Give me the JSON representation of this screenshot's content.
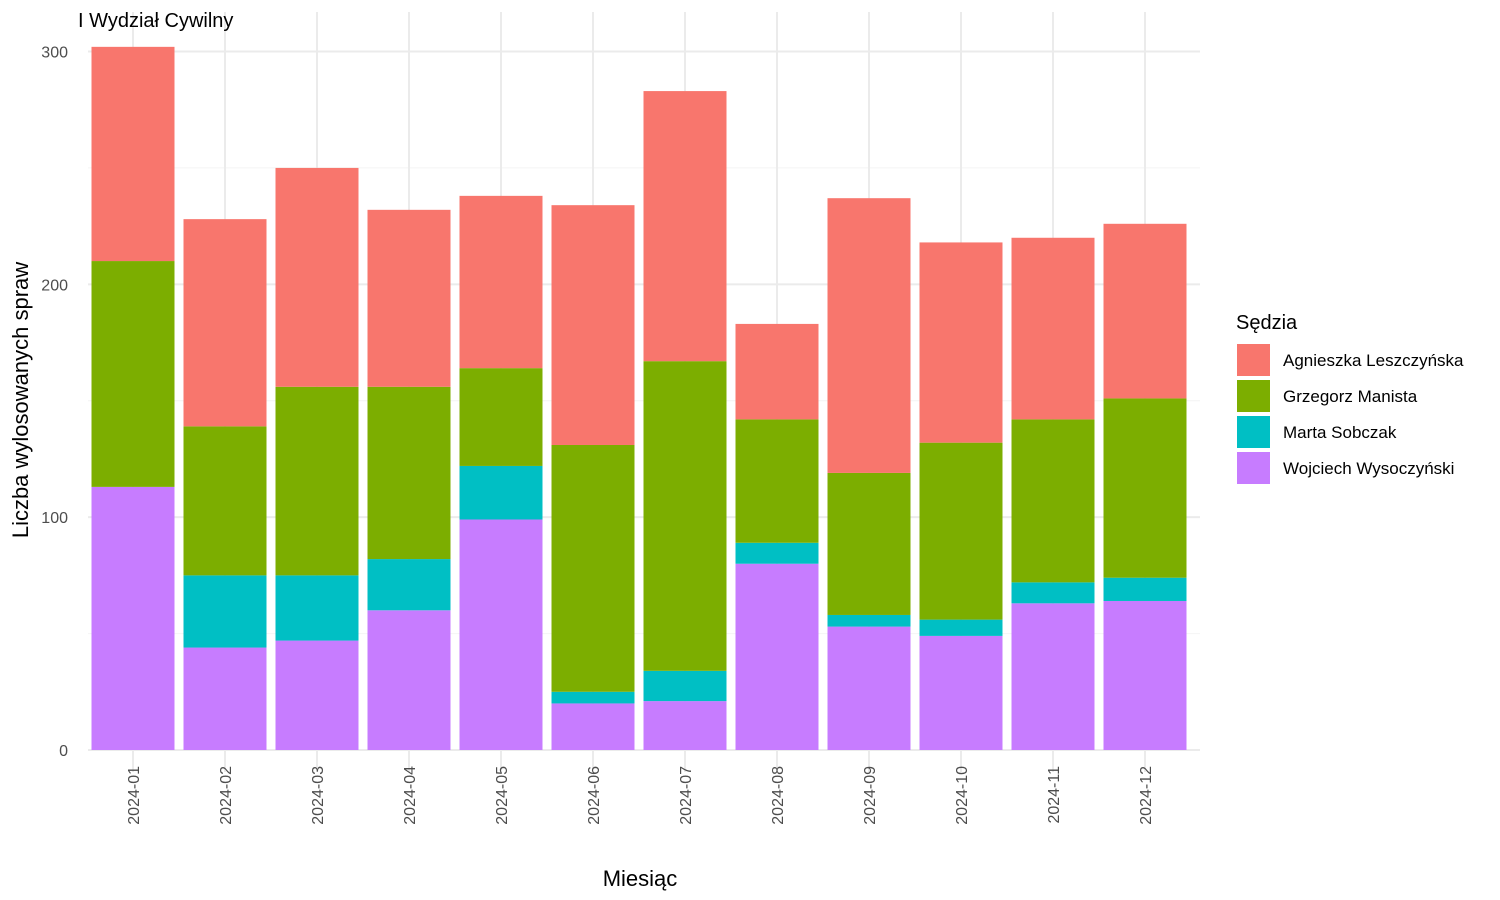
{
  "chart_data": {
    "type": "bar",
    "stacked": true,
    "title": "I Wydział Cywilny",
    "xlabel": "Miesiąc",
    "ylabel": "Liczba wylosowanych spraw",
    "ylim": [
      0,
      310
    ],
    "yticks": [
      0,
      100,
      200,
      300
    ],
    "grid": true,
    "legend_title": "Sędzia",
    "legend_position": "right",
    "categories": [
      "2024-01",
      "2024-02",
      "2024-03",
      "2024-04",
      "2024-05",
      "2024-06",
      "2024-07",
      "2024-08",
      "2024-09",
      "2024-10",
      "2024-11",
      "2024-12"
    ],
    "series": [
      {
        "name": "Wojciech Wysoczyński",
        "color": "#C77CFF",
        "values": [
          113,
          44,
          47,
          60,
          99,
          20,
          21,
          80,
          53,
          49,
          63,
          64
        ]
      },
      {
        "name": "Marta Sobczak",
        "color": "#00BFC4",
        "values": [
          0,
          31,
          28,
          22,
          23,
          5,
          13,
          9,
          5,
          7,
          9,
          10
        ]
      },
      {
        "name": "Grzegorz Manista",
        "color": "#7CAE00",
        "values": [
          97,
          64,
          81,
          74,
          42,
          106,
          133,
          53,
          61,
          76,
          70,
          77
        ]
      },
      {
        "name": "Agnieszka Leszczyńska",
        "color": "#F8766D",
        "values": [
          92,
          89,
          94,
          76,
          74,
          103,
          116,
          41,
          118,
          86,
          78,
          75
        ]
      }
    ],
    "legend_order": [
      "Agnieszka Leszczyńska",
      "Grzegorz Manista",
      "Marta Sobczak",
      "Wojciech Wysoczyński"
    ]
  }
}
